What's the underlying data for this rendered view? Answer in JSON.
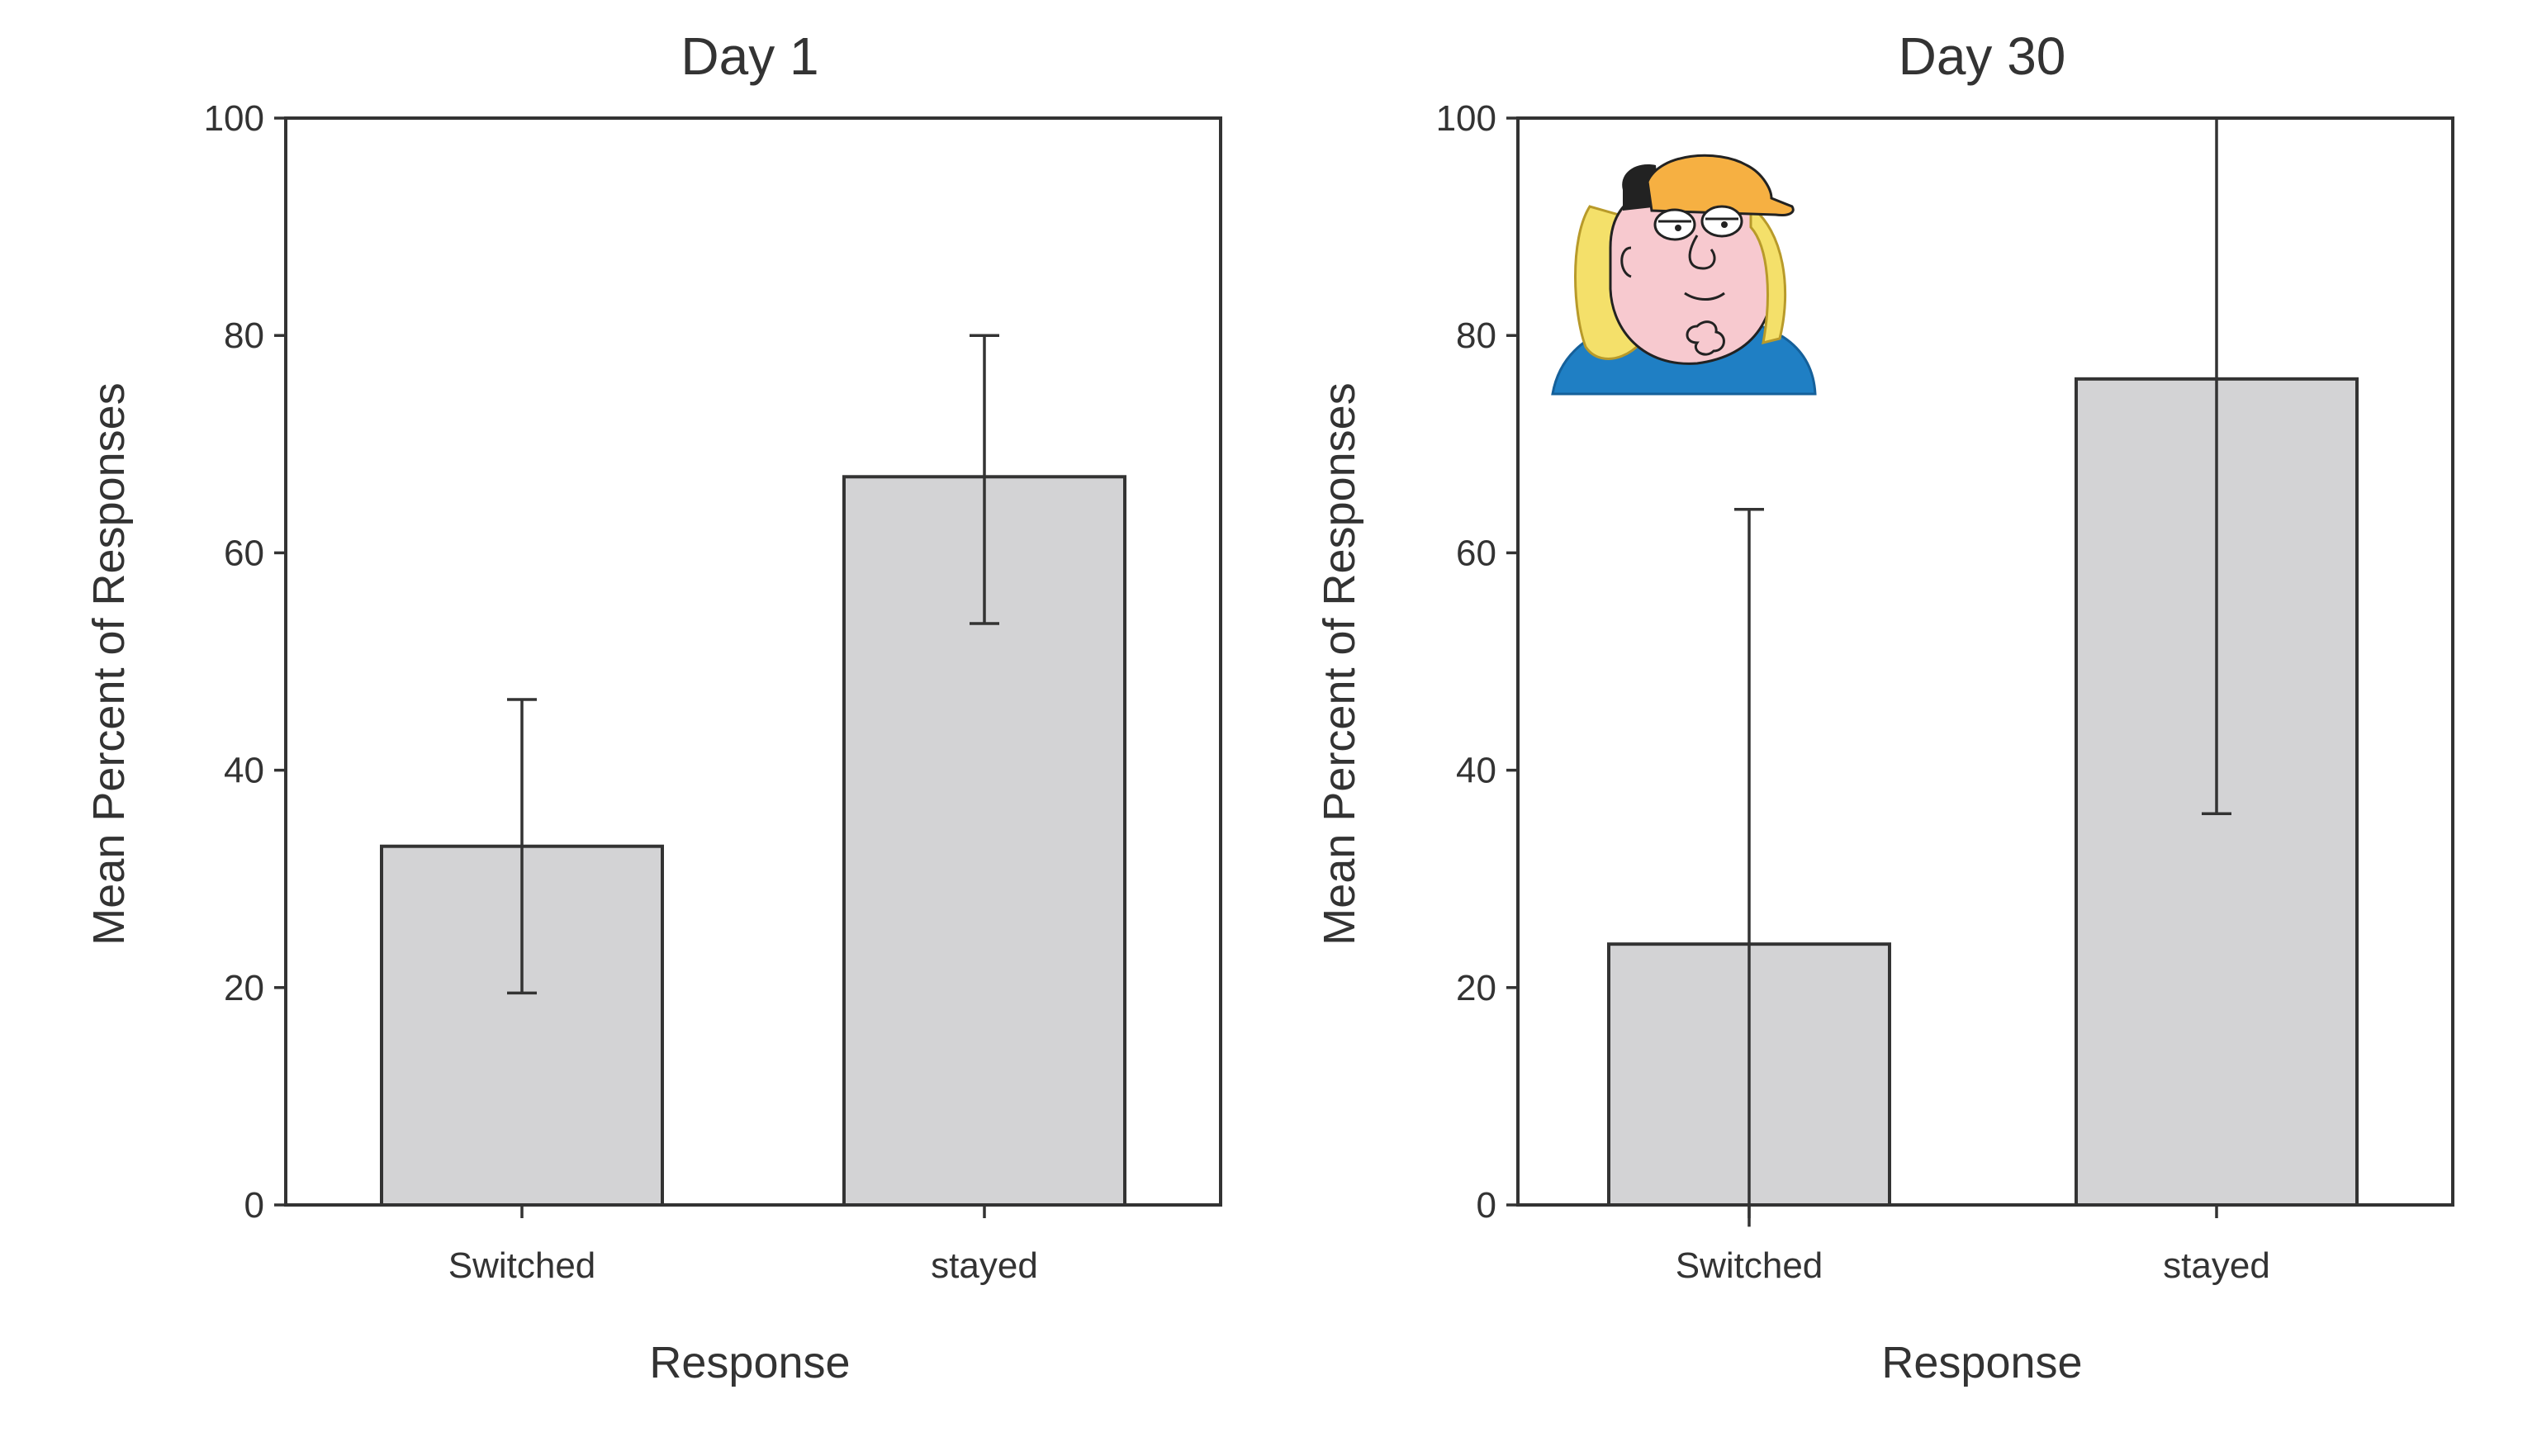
{
  "chart_data": [
    {
      "type": "bar",
      "title": "Day 1",
      "xlabel": "Response",
      "ylabel": "Mean Percent of Responses",
      "categories": [
        "Switched",
        "stayed"
      ],
      "values": [
        33,
        67
      ],
      "error_low": [
        19.5,
        53.5
      ],
      "error_high": [
        46.5,
        80
      ],
      "ylim": [
        0,
        100
      ],
      "yticks": [
        0,
        20,
        40,
        60,
        80,
        100
      ],
      "grid": false,
      "bar_color": "#d3d3d5"
    },
    {
      "type": "bar",
      "title": "Day 30",
      "xlabel": "Response",
      "ylabel": "Mean Percent of Responses",
      "categories": [
        "Switched",
        "stayed"
      ],
      "values": [
        24,
        76
      ],
      "error_low": [
        -2,
        36
      ],
      "error_high": [
        64,
        100
      ],
      "ylim": [
        0,
        100
      ],
      "yticks": [
        0,
        20,
        40,
        60,
        80,
        100
      ],
      "grid": false,
      "bar_color": "#d3d3d5"
    }
  ],
  "decoration": {
    "icon": "cartoon-face-icon",
    "skin_color": "#f7c9cf",
    "hair_color": "#f4e06a",
    "cap_color": "#f6b042",
    "shirt_color": "#1f7fc4"
  }
}
